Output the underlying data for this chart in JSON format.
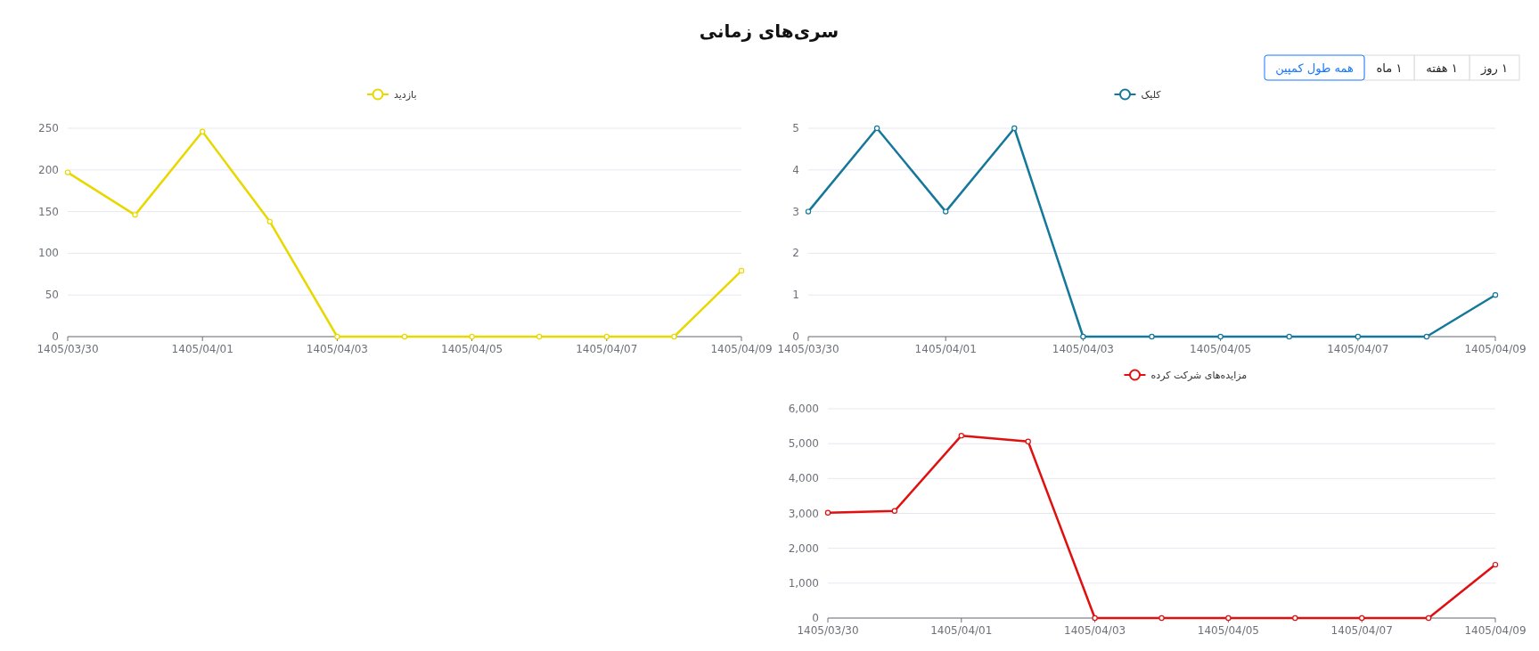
{
  "chart_data": [
    {
      "type": "other",
      "title": "سری‌های زمانی",
      "annotations": [
        "۱ روز",
        "۱ هفته",
        "۱ ماه",
        "همه طول کمپین"
      ]
    },
    {
      "type": "line",
      "categories": [
        "1405/03/30",
        null,
        "1405/04/01",
        null,
        "1405/04/03",
        null,
        "1405/04/05",
        null,
        "1405/04/07",
        null,
        "1405/04/09"
      ],
      "ylim": [
        0,
        250
      ],
      "yticks": [
        0,
        50,
        100,
        150,
        200,
        250
      ],
      "grid": "y",
      "legend": "top",
      "marker": "circle",
      "series": [
        {
          "name": "بازدید",
          "color": "#e8d800",
          "values": [
            197,
            146,
            246,
            138,
            0,
            0,
            0,
            0,
            0,
            0,
            79
          ]
        }
      ]
    },
    {
      "type": "line",
      "categories": [
        "1405/03/30",
        null,
        "1405/04/01",
        null,
        "1405/04/03",
        null,
        "1405/04/05",
        null,
        "1405/04/07",
        null,
        "1405/04/09"
      ],
      "ylim": [
        0,
        5
      ],
      "yticks": [
        0,
        1,
        2,
        3,
        4,
        5
      ],
      "grid": "y",
      "legend": "top",
      "marker": "circle",
      "series": [
        {
          "name": "کلیک",
          "color": "#15789a",
          "values": [
            3,
            5,
            3,
            5,
            0,
            0,
            0,
            0,
            0,
            0,
            1
          ]
        }
      ]
    },
    {
      "type": "line",
      "categories": [
        "1405/03/30",
        null,
        "1405/04/01",
        null,
        "1405/04/03",
        null,
        "1405/04/05",
        null,
        "1405/04/07",
        null,
        "1405/04/09"
      ],
      "ylim": [
        0,
        6000
      ],
      "yticks": [
        0,
        {
          "value": 1000,
          "label": "1,000"
        },
        {
          "value": 2000,
          "label": "2,000"
        },
        {
          "value": 3000,
          "label": "3,000"
        },
        {
          "value": 4000,
          "label": "4,000"
        },
        {
          "value": 5000,
          "label": "5,000"
        },
        {
          "value": 6000,
          "label": "6,000"
        }
      ],
      "grid": "y",
      "legend": "top",
      "marker": "circle",
      "series": [
        {
          "name": "مزایده‌های شرکت کرده",
          "color": "#e01010",
          "values": [
            3020,
            3070,
            5230,
            5060,
            0,
            0,
            0,
            0,
            0,
            0,
            1530
          ]
        }
      ]
    }
  ]
}
